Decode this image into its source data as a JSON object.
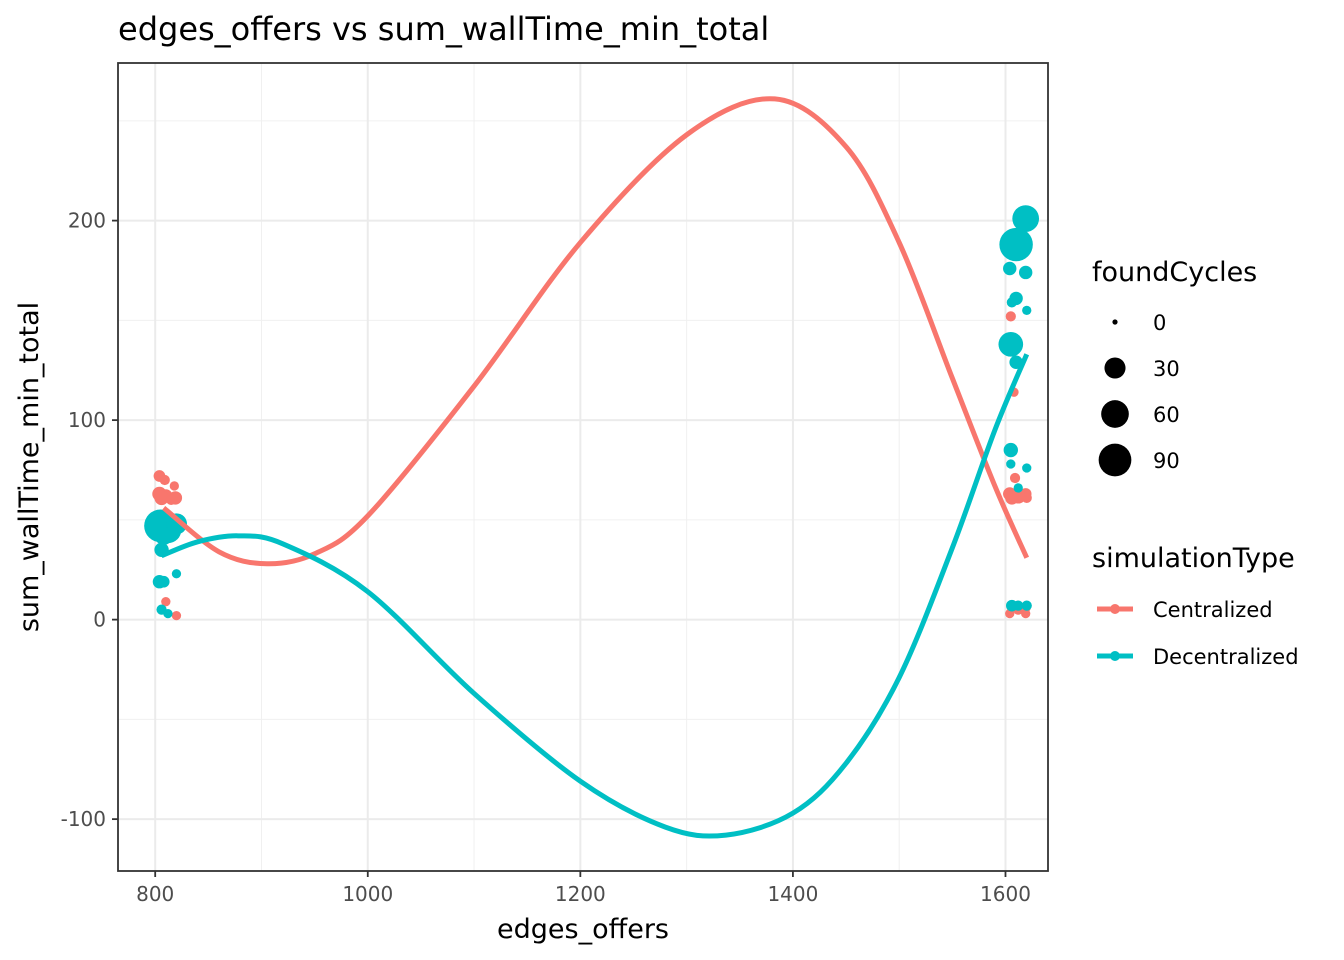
{
  "chart_data": {
    "type": "scatter",
    "title": "edges_offers  vs  sum_wallTime_min_total",
    "xlabel": "edges_offers",
    "ylabel": "sum_wallTime_min_total",
    "xlim": [
      765,
      1640
    ],
    "ylim": [
      -126,
      279
    ],
    "x_ticks": [
      800,
      1000,
      1200,
      1400,
      1600
    ],
    "y_ticks": [
      -100,
      0,
      100,
      200
    ],
    "x_tick_labels": [
      "800",
      "1000",
      "1200",
      "1400",
      "1600"
    ],
    "y_tick_labels": [
      "-100",
      "0",
      "100",
      "200"
    ],
    "grid": true,
    "legend_placement": "right",
    "size_legend": {
      "title": "foundCycles",
      "entries": [
        {
          "label": "0",
          "value": 0
        },
        {
          "label": "30",
          "value": 30
        },
        {
          "label": "60",
          "value": 60
        },
        {
          "label": "90",
          "value": 90
        }
      ]
    },
    "color_legend": {
      "title": "simulationType",
      "entries": [
        {
          "label": "Centralized",
          "color": "#F8766D"
        },
        {
          "label": "Decentralized",
          "color": "#00BFC4"
        }
      ]
    },
    "series": [
      {
        "name": "Centralized",
        "color": "#F8766D",
        "points": [
          {
            "x": 804,
            "y": 72,
            "size": 5
          },
          {
            "x": 809,
            "y": 70,
            "size": 3
          },
          {
            "x": 818,
            "y": 67,
            "size": 2
          },
          {
            "x": 804,
            "y": 63,
            "size": 10
          },
          {
            "x": 810,
            "y": 62,
            "size": 8
          },
          {
            "x": 819,
            "y": 61,
            "size": 8
          },
          {
            "x": 806,
            "y": 61,
            "size": 10
          },
          {
            "x": 815,
            "y": 60,
            "size": 3
          },
          {
            "x": 810,
            "y": 9,
            "size": 2
          },
          {
            "x": 820,
            "y": 2,
            "size": 2
          },
          {
            "x": 1605,
            "y": 152,
            "size": 3
          },
          {
            "x": 1608,
            "y": 114,
            "size": 2
          },
          {
            "x": 1609,
            "y": 71,
            "size": 3
          },
          {
            "x": 1604,
            "y": 63,
            "size": 8
          },
          {
            "x": 1612,
            "y": 62,
            "size": 12
          },
          {
            "x": 1619,
            "y": 63,
            "size": 5
          },
          {
            "x": 1606,
            "y": 61,
            "size": 8
          },
          {
            "x": 1620,
            "y": 61,
            "size": 3
          },
          {
            "x": 1606,
            "y": 6,
            "size": 3
          },
          {
            "x": 1612,
            "y": 5,
            "size": 3
          },
          {
            "x": 1619,
            "y": 6,
            "size": 3
          },
          {
            "x": 1604,
            "y": 3,
            "size": 2
          },
          {
            "x": 1619,
            "y": 3,
            "size": 2
          }
        ],
        "fit": {
          "x": [
            808,
            860,
            905,
            950,
            1000,
            1100,
            1200,
            1300,
            1383,
            1450,
            1500,
            1550,
            1590,
            1620
          ],
          "y": [
            56,
            34,
            28,
            33,
            52,
            117,
            189,
            243,
            261,
            237,
            189,
            121,
            67,
            31
          ]
        }
      },
      {
        "name": "Decentralized",
        "color": "#00BFC4",
        "points": [
          {
            "x": 805,
            "y": 47,
            "size": 90
          },
          {
            "x": 812,
            "y": 45,
            "size": 55
          },
          {
            "x": 820,
            "y": 48,
            "size": 30
          },
          {
            "x": 808,
            "y": 42,
            "size": 20
          },
          {
            "x": 806,
            "y": 35,
            "size": 10
          },
          {
            "x": 804,
            "y": 19,
            "size": 8
          },
          {
            "x": 808,
            "y": 19,
            "size": 5
          },
          {
            "x": 820,
            "y": 23,
            "size": 2
          },
          {
            "x": 806,
            "y": 5,
            "size": 3
          },
          {
            "x": 812,
            "y": 3,
            "size": 2
          },
          {
            "x": 1619,
            "y": 201,
            "size": 55
          },
          {
            "x": 1610,
            "y": 188,
            "size": 95
          },
          {
            "x": 1604,
            "y": 176,
            "size": 8
          },
          {
            "x": 1619,
            "y": 174,
            "size": 8
          },
          {
            "x": 1610,
            "y": 161,
            "size": 8
          },
          {
            "x": 1606,
            "y": 159,
            "size": 3
          },
          {
            "x": 1620,
            "y": 155,
            "size": 2
          },
          {
            "x": 1605,
            "y": 138,
            "size": 45
          },
          {
            "x": 1610,
            "y": 129,
            "size": 8
          },
          {
            "x": 1605,
            "y": 85,
            "size": 10
          },
          {
            "x": 1605,
            "y": 78,
            "size": 2
          },
          {
            "x": 1620,
            "y": 76,
            "size": 2
          },
          {
            "x": 1612,
            "y": 66,
            "size": 2
          },
          {
            "x": 1606,
            "y": 7,
            "size": 5
          },
          {
            "x": 1612,
            "y": 7,
            "size": 3
          },
          {
            "x": 1620,
            "y": 7,
            "size": 3
          }
        ],
        "fit": {
          "x": [
            806,
            840,
            878,
            920,
            1000,
            1100,
            1200,
            1280,
            1337,
            1400,
            1450,
            1500,
            1550,
            1590,
            1620
          ],
          "y": [
            32,
            39,
            42,
            38,
            14,
            -37,
            -81,
            -104,
            -108,
            -97,
            -72,
            -29,
            36,
            95,
            133
          ]
        }
      }
    ]
  }
}
